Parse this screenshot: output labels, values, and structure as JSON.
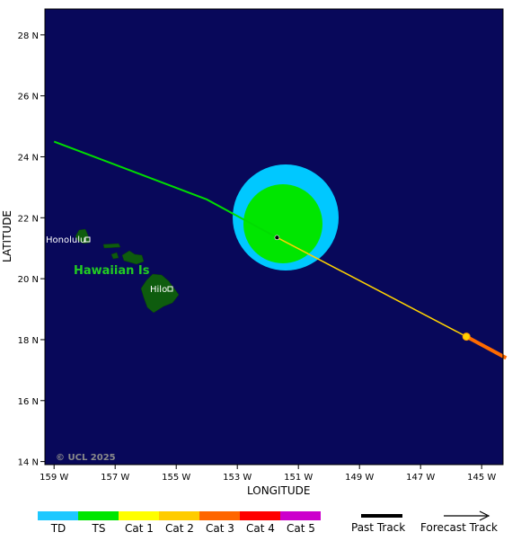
{
  "map": {
    "xlabel": "LONGITUDE",
    "ylabel": "LATITUDE",
    "x_ticks": [
      "159 W",
      "157 W",
      "155 W",
      "153 W",
      "151 W",
      "149 W",
      "147 W",
      "145 W"
    ],
    "y_ticks": [
      "28 N",
      "26 N",
      "24 N",
      "22 N",
      "20 N",
      "18 N",
      "16 N",
      "14 N"
    ],
    "credit": "© UCL 2025",
    "region_label": "Hawaiian Is",
    "cities": {
      "honolulu": "Honolulu",
      "hilo": "Hilo"
    },
    "colors": {
      "ocean": "#08085a",
      "land": "#0e5c0e",
      "wind_outer": "#00c8ff",
      "wind_inner": "#00e600",
      "track_past_ts": "#00dd00",
      "track_cat1": "#ffd200",
      "track_cat3": "#ff6a00",
      "region_text": "#22cc22"
    },
    "storm_center": {
      "lon": -151.7,
      "lat": 21.35
    },
    "track_points": [
      {
        "lon": -159.0,
        "lat": 24.5
      },
      {
        "lon": -154.0,
        "lat": 22.6
      },
      {
        "lon": -151.7,
        "lat": 21.35
      },
      {
        "lon": -149.5,
        "lat": 20.2
      },
      {
        "lon": -145.5,
        "lat": 18.1
      },
      {
        "lon": -144.2,
        "lat": 17.4
      }
    ]
  },
  "legend": {
    "categories": [
      {
        "label": "TD",
        "color": "#1ec8ff"
      },
      {
        "label": "TS",
        "color": "#00e600"
      },
      {
        "label": "Cat 1",
        "color": "#ffff00"
      },
      {
        "label": "Cat 2",
        "color": "#ffcc00"
      },
      {
        "label": "Cat 3",
        "color": "#ff6600"
      },
      {
        "label": "Cat 4",
        "color": "#ff0000"
      },
      {
        "label": "Cat 5",
        "color": "#cc00cc"
      }
    ],
    "past_track": "Past Track",
    "forecast_track": "Forecast Track"
  }
}
